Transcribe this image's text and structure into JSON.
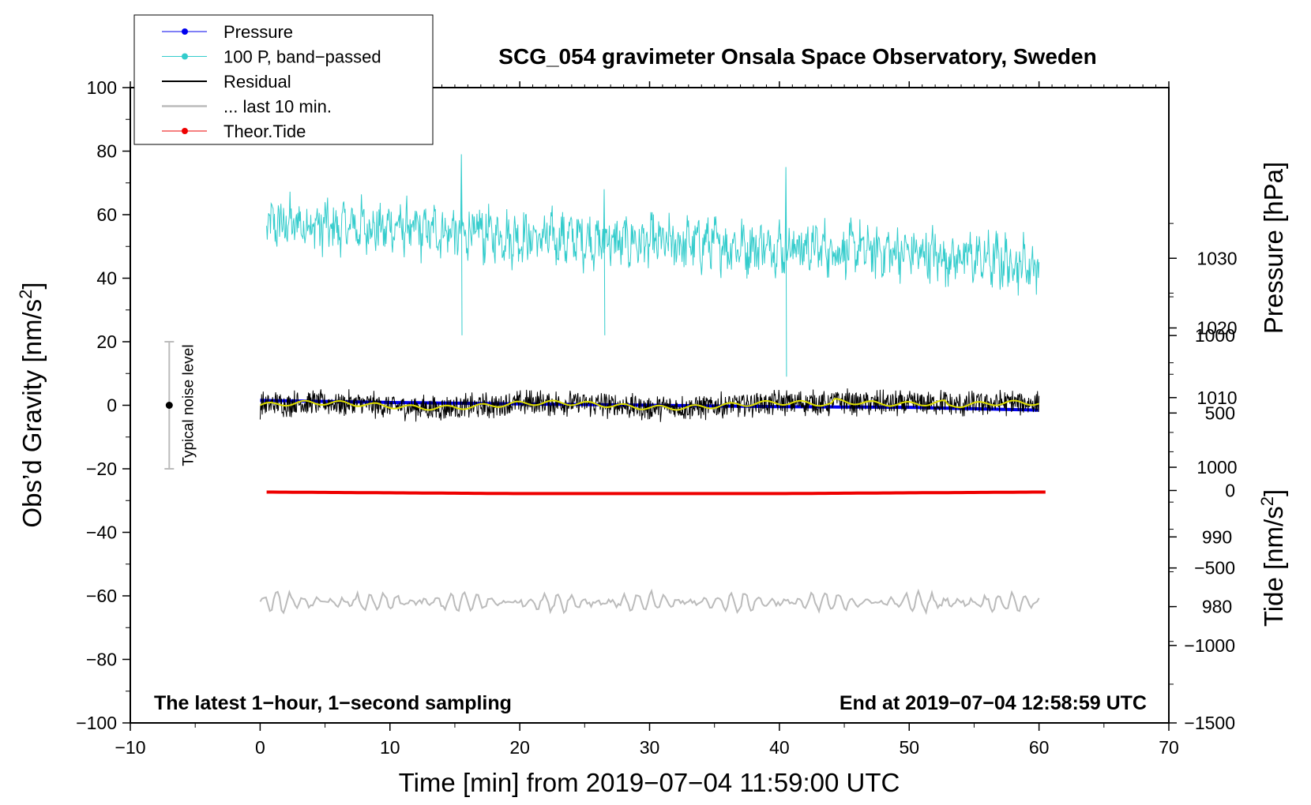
{
  "chart_data": {
    "type": "line",
    "title": "SCG_054 gravimeter Onsala Space Observatory, Sweden",
    "xlabel": "Time [min] from 2019−07−04 11:59:00 UTC",
    "ylabel_left": "Obs’d Gravity [nm/s²]",
    "ylabel_pressure": "Pressure [hPa]",
    "ylabel_tide": "Tide [nm/s²]",
    "xlim": [
      -10,
      70
    ],
    "ylim": [
      -100,
      100
    ],
    "pressure_lim": [
      963.3,
      1054.5
    ],
    "tide_lim": [
      -1500,
      2600
    ],
    "x_ticks": [
      "−10",
      "0",
      "10",
      "20",
      "30",
      "40",
      "50",
      "60",
      "70"
    ],
    "x_tick_values": [
      -10,
      0,
      10,
      20,
      30,
      40,
      50,
      60,
      70
    ],
    "y_ticks": [
      "100",
      "80",
      "60",
      "40",
      "20",
      "0",
      "−20",
      "−40",
      "−60",
      "−80",
      "−100"
    ],
    "y_tick_values": [
      100,
      80,
      60,
      40,
      20,
      0,
      -20,
      -40,
      -60,
      -80,
      -100
    ],
    "pressure_ticks": [
      "1030",
      "1020",
      "1010",
      "1000",
      "990",
      "980"
    ],
    "pressure_tick_values": [
      1030,
      1020,
      1010,
      1000,
      990,
      980
    ],
    "tide_ticks": [
      "1000",
      "500",
      "0",
      "−500",
      "−1000",
      "−1500"
    ],
    "tide_tick_values": [
      1000,
      500,
      0,
      -500,
      -1000,
      -1500
    ],
    "series": [
      {
        "name": "Pressure",
        "axis": "pressure",
        "color": "#0000ee",
        "x": [
          0,
          10,
          20,
          30,
          40,
          50,
          60
        ],
        "values": [
          1009.6,
          1009.3,
          1009.1,
          1008.9,
          1008.7,
          1008.6,
          1008.2
        ]
      },
      {
        "name": "100 P, band−passed",
        "axis": "left",
        "color": "#33cccc",
        "style": "oscillation",
        "center": [
          57,
          56,
          53,
          51,
          50,
          48,
          44
        ],
        "x": [
          0,
          10,
          20,
          30,
          40,
          50,
          60
        ],
        "amplitude": 8,
        "spikes": [
          {
            "x": 15.5,
            "min": 22,
            "max": 79
          },
          {
            "x": 26.5,
            "min": 22,
            "max": 68
          },
          {
            "x": 40.5,
            "min": 9,
            "max": 75
          }
        ]
      },
      {
        "name": "Residual",
        "axis": "left",
        "color": "#000000",
        "style": "noise",
        "center": 0,
        "amplitude": 3
      },
      {
        "name": "... last 10 min.",
        "axis": "left",
        "color": "#bbbbbb",
        "style": "noise",
        "center": -62,
        "amplitude": 3
      },
      {
        "name": "Theor.Tide",
        "axis": "tide",
        "color": "#ee0000",
        "x": [
          0,
          10,
          20,
          30,
          40,
          50,
          60.5
        ],
        "values": [
          -10,
          -15,
          -20,
          -20,
          -20,
          -15,
          -10
        ]
      }
    ],
    "noise_bar": {
      "x": -7,
      "center": 0,
      "min": -20,
      "max": 20,
      "label": "Typical noise level"
    },
    "annotations": {
      "left": "The latest 1−hour, 1−second sampling",
      "right": "End at 2019−07−04 12:58:59 UTC"
    },
    "legend": {
      "placement": "top-left",
      "entries": [
        {
          "label": "Pressure",
          "color": "#0000ee",
          "marker": true
        },
        {
          "label": "100 P, band−passed",
          "color": "#33cccc",
          "marker": true
        },
        {
          "label": "Residual",
          "color": "#000000",
          "marker": false
        },
        {
          "label": "... last 10 min.",
          "color": "#bbbbbb",
          "marker": false
        },
        {
          "label": "Theor.Tide",
          "color": "#ee0000",
          "marker": true
        }
      ]
    }
  }
}
